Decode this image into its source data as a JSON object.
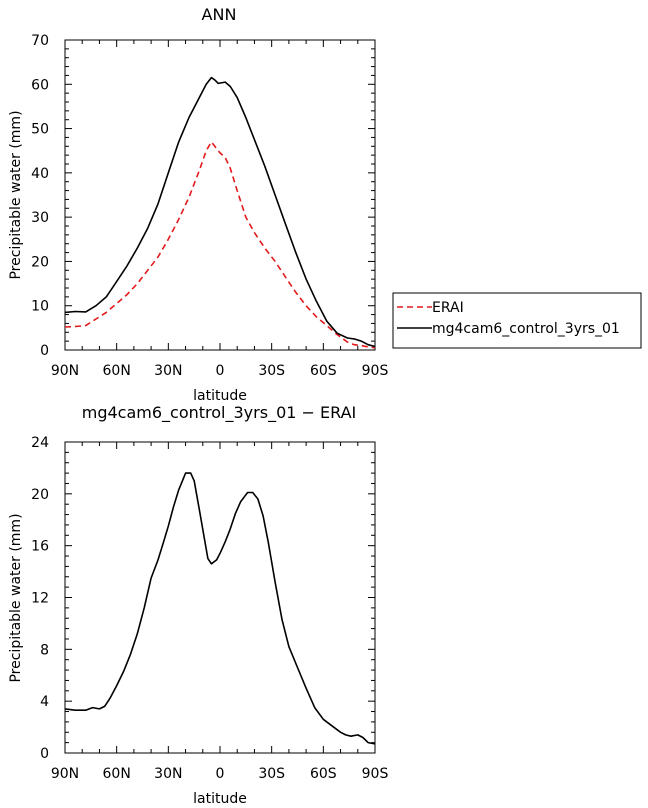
{
  "chart_data": [
    {
      "type": "line",
      "title": "ANN",
      "xlabel": "latitude",
      "ylabel": "Precipitable water (mm)",
      "x_tick_labels": [
        "90N",
        "60N",
        "30N",
        "0",
        "30S",
        "60S",
        "90S"
      ],
      "x_tick_values": [
        90,
        60,
        30,
        0,
        -30,
        -60,
        -90
      ],
      "xlim": [
        90,
        -90
      ],
      "ylim": [
        0,
        70
      ],
      "y_ticks": [
        0,
        10,
        20,
        30,
        40,
        50,
        60,
        70
      ],
      "grid": false,
      "legend_position": "right, outside plot",
      "series": [
        {
          "name": "ERAI",
          "color": "#e31a1c",
          "dash": "dashed",
          "x": [
            90,
            84,
            78,
            72,
            66,
            60,
            54,
            48,
            42,
            36,
            30,
            24,
            18,
            12,
            8,
            5,
            3,
            0,
            -3,
            -6,
            -10,
            -15,
            -20,
            -26,
            -32,
            -38,
            -44,
            -50,
            -56,
            -62,
            -68,
            -74,
            -78,
            -82,
            -86,
            -90
          ],
          "y": [
            5.2,
            5.3,
            5.5,
            7,
            8.5,
            10.5,
            12.5,
            15,
            18,
            21,
            25,
            29.5,
            34.5,
            40.5,
            45,
            47,
            46,
            44.5,
            43.5,
            41,
            36,
            30,
            26.5,
            23,
            20,
            16.5,
            13,
            10,
            7.5,
            5.5,
            3.5,
            1.8,
            1.2,
            1,
            0.7,
            0.5
          ]
        },
        {
          "name": "mg4cam6_control_3yrs_01",
          "color": "#000000",
          "dash": "solid",
          "x": [
            90,
            84,
            78,
            72,
            66,
            60,
            54,
            48,
            42,
            36,
            30,
            24,
            18,
            12,
            8,
            5,
            3,
            1,
            -3,
            -6,
            -10,
            -15,
            -20,
            -26,
            -32,
            -38,
            -44,
            -50,
            -56,
            -62,
            -68,
            -74,
            -78,
            -82,
            -86,
            -90
          ],
          "y": [
            8.5,
            8.7,
            8.6,
            10,
            12,
            15.5,
            19,
            23,
            27.5,
            33,
            40,
            47,
            52.5,
            57,
            60,
            61.5,
            61,
            60.2,
            60.5,
            59.5,
            57,
            52.5,
            47.5,
            41.5,
            35,
            28.5,
            22,
            16,
            11,
            6.5,
            3.8,
            2.7,
            2.5,
            2,
            1.2,
            0.8
          ]
        }
      ]
    },
    {
      "type": "line",
      "title": "mg4cam6_control_3yrs_01 − ERAI",
      "xlabel": "latitude",
      "ylabel": "Precipitable water (mm)",
      "x_tick_labels": [
        "90N",
        "60N",
        "30N",
        "0",
        "30S",
        "60S",
        "90S"
      ],
      "x_tick_values": [
        90,
        60,
        30,
        0,
        -30,
        -60,
        -90
      ],
      "xlim": [
        90,
        -90
      ],
      "ylim": [
        0,
        24
      ],
      "y_ticks": [
        0,
        4,
        8,
        12,
        16,
        20,
        24
      ],
      "grid": false,
      "series": [
        {
          "color": "#000000",
          "dash": "solid",
          "x": [
            90,
            84,
            78,
            74,
            70,
            67,
            64,
            60,
            56,
            52,
            48,
            44,
            40,
            36,
            33,
            30,
            27,
            24,
            20,
            17,
            15,
            12,
            9,
            7,
            5,
            2,
            0,
            -3,
            -6,
            -9,
            -12,
            -16,
            -19,
            -22,
            -25,
            -28,
            -32,
            -36,
            -40,
            -45,
            -50,
            -55,
            -60,
            -65,
            -70,
            -73,
            -76,
            -80,
            -83,
            -86,
            -90
          ],
          "y": [
            3.4,
            3.3,
            3.3,
            3.5,
            3.4,
            3.6,
            4.2,
            5.2,
            6.3,
            7.6,
            9.2,
            11.2,
            13.5,
            14.9,
            16.2,
            17.5,
            19,
            20.3,
            21.6,
            21.6,
            21,
            18.8,
            16.5,
            15,
            14.6,
            14.9,
            15.4,
            16.3,
            17.3,
            18.5,
            19.4,
            20.1,
            20.1,
            19.6,
            18.3,
            16.3,
            13.2,
            10.3,
            8.2,
            6.6,
            5,
            3.5,
            2.6,
            2.1,
            1.6,
            1.4,
            1.3,
            1.4,
            1.2,
            0.8,
            0.7
          ]
        }
      ]
    }
  ]
}
